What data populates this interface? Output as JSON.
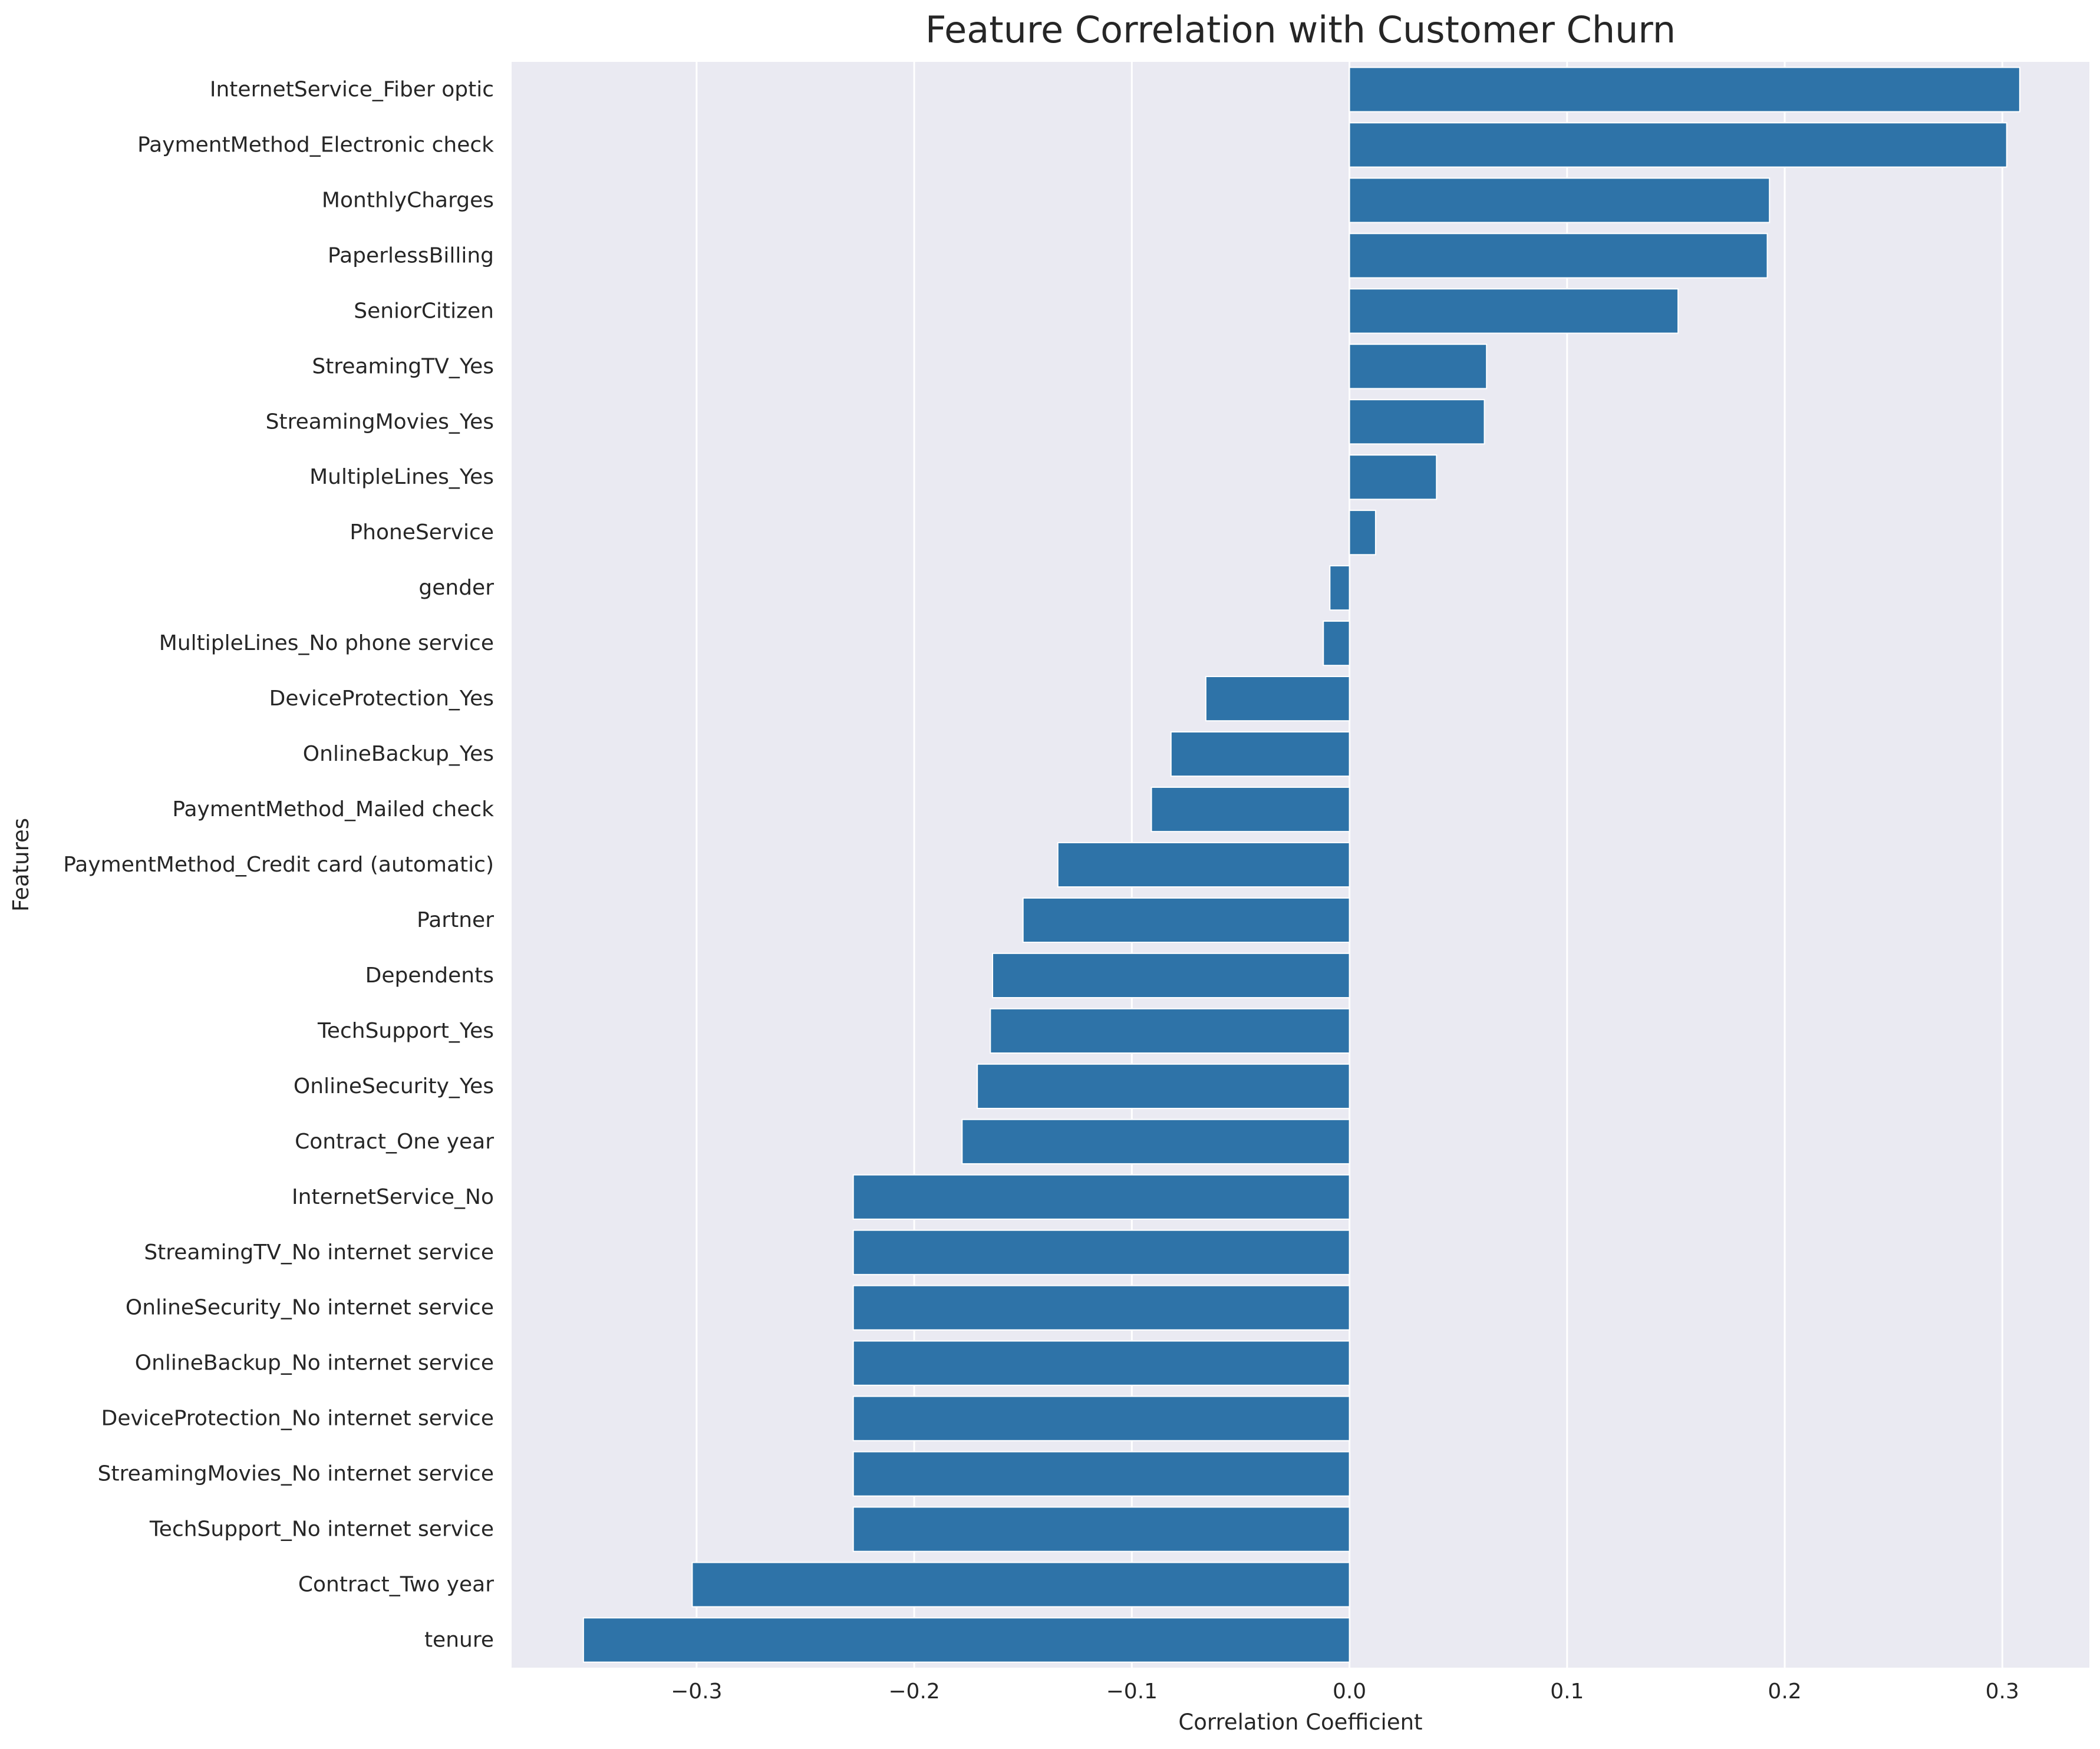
{
  "chart_data": {
    "type": "bar",
    "orientation": "horizontal",
    "title": "Feature Correlation with Customer Churn",
    "xlabel": "Correlation Coefficient",
    "ylabel": "Features",
    "xlim": [
      -0.385,
      0.34
    ],
    "xticks": [
      -0.3,
      -0.2,
      -0.1,
      0.0,
      0.1,
      0.2,
      0.3
    ],
    "xtick_labels": [
      "−0.3",
      "−0.2",
      "−0.1",
      "0.0",
      "0.1",
      "0.2",
      "0.3"
    ],
    "grid": "x",
    "categories": [
      "InternetService_Fiber optic",
      "PaymentMethod_Electronic check",
      "MonthlyCharges",
      "PaperlessBilling",
      "SeniorCitizen",
      "StreamingTV_Yes",
      "StreamingMovies_Yes",
      "MultipleLines_Yes",
      "PhoneService",
      "gender",
      "MultipleLines_No phone service",
      "DeviceProtection_Yes",
      "OnlineBackup_Yes",
      "PaymentMethod_Mailed check",
      "PaymentMethod_Credit card (automatic)",
      "Partner",
      "Dependents",
      "TechSupport_Yes",
      "OnlineSecurity_Yes",
      "Contract_One year",
      "InternetService_No",
      "StreamingTV_No internet service",
      "OnlineSecurity_No internet service",
      "OnlineBackup_No internet service",
      "DeviceProtection_No internet service",
      "StreamingMovies_No internet service",
      "TechSupport_No internet service",
      "Contract_Two year",
      "tenure"
    ],
    "values": [
      0.308,
      0.302,
      0.193,
      0.192,
      0.151,
      0.063,
      0.062,
      0.04,
      0.012,
      -0.009,
      -0.012,
      -0.066,
      -0.082,
      -0.091,
      -0.134,
      -0.15,
      -0.164,
      -0.165,
      -0.171,
      -0.178,
      -0.228,
      -0.228,
      -0.228,
      -0.228,
      -0.228,
      -0.228,
      -0.228,
      -0.302,
      -0.352
    ],
    "colors": {
      "bar": "#2e73a8",
      "plot_background": "#eaeaf2",
      "grid": "#ffffff"
    }
  }
}
